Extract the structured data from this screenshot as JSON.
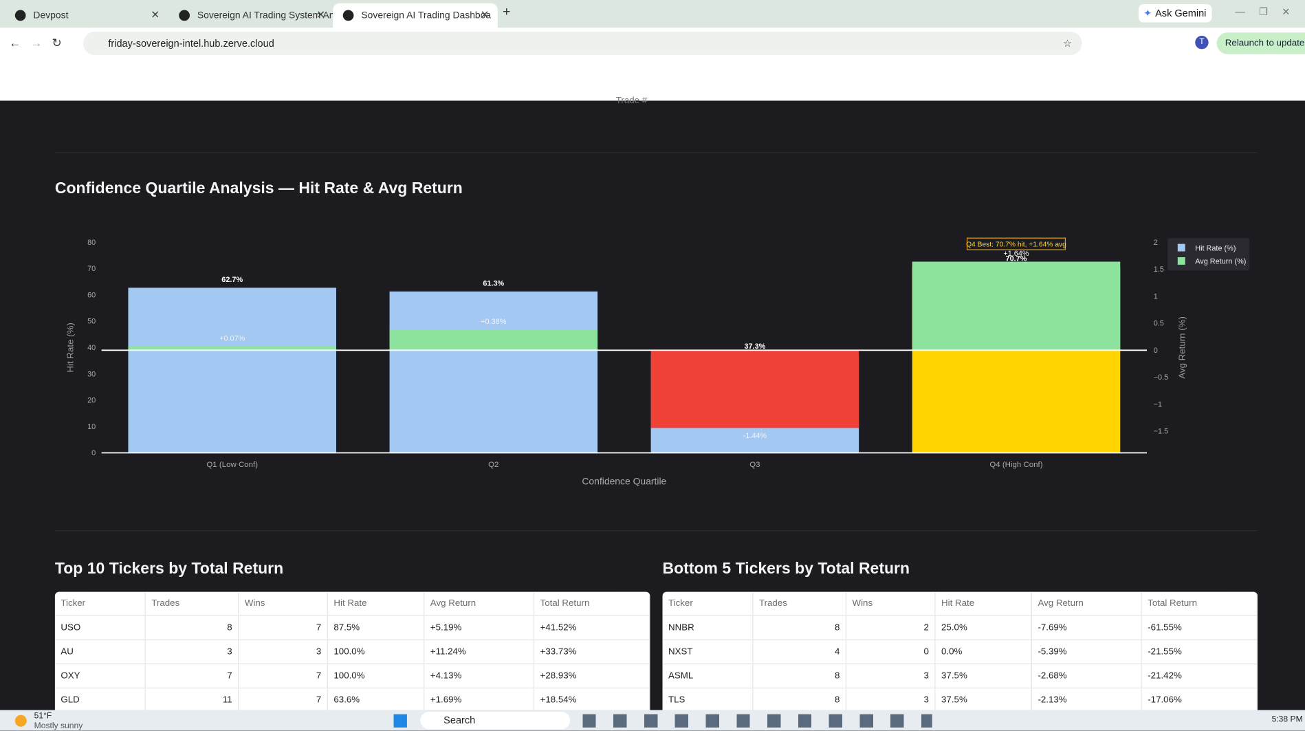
{
  "browser": {
    "tabs": [
      "Devpost",
      "Sovereign AI Trading System An",
      "Sovereign AI Trading Dashboa"
    ],
    "url": "friday-sovereign-intel.hub.zerve.cloud",
    "ask": "Ask Gemini",
    "relaunch": "Relaunch to update",
    "profile": "T"
  },
  "prev_axis_label": "Trade #",
  "chart_data": {
    "type": "bar",
    "title": "Confidence Quartile Analysis — Hit Rate & Avg Return",
    "categories": [
      "Q1 (Low Conf)",
      "Q2",
      "Q3",
      "Q4 (High Conf)"
    ],
    "series": [
      {
        "name": "Hit Rate (%)",
        "color": "#a3c8f2",
        "colors": [
          "#a3c8f2",
          "#a3c8f2",
          "#a3c8f2",
          "#ffd400"
        ],
        "values": [
          62.7,
          61.3,
          37.3,
          70.7
        ],
        "value_labels": [
          "62.7%",
          "61.3%",
          "37.3%",
          "70.7%"
        ]
      },
      {
        "name": "Avg Return (%)",
        "color": "#8de39e",
        "colors": [
          "#8de39e",
          "#8de39e",
          "#ef4136",
          "#8de39e"
        ],
        "axis": "y2",
        "values": [
          0.07,
          0.38,
          -1.44,
          1.64
        ],
        "value_labels": [
          "+0.07%",
          "+0.38%",
          "-1.44%",
          "+1.64%"
        ]
      }
    ],
    "xlabel": "Confidence Quartile",
    "ylabel": "Hit Rate (%)",
    "y2label": "Avg Return (%)",
    "ylim": [
      0,
      80
    ],
    "yticks": [
      0,
      10,
      20,
      30,
      40,
      50,
      60,
      70,
      80
    ],
    "y2lim": [
      -1.9,
      2
    ],
    "y2ticks": [
      {
        "value": -1.5,
        "label": "−1.5"
      },
      {
        "value": -1,
        "label": "−1"
      },
      {
        "value": -0.5,
        "label": "−0.5"
      },
      0,
      0.5,
      1,
      1.5,
      2
    ],
    "annotation": "Q4 Best: 70.7% hit, +1.64% avg",
    "legend": "right",
    "grid": false
  },
  "tables": [
    {
      "title": "Top 10 Tickers by Total Return",
      "columns": [
        "Ticker",
        "Trades",
        "Wins",
        "Hit Rate",
        "Avg Return",
        "Total Return"
      ],
      "rows": [
        [
          "USO",
          "8",
          "7",
          "87.5%",
          "+5.19%",
          "+41.52%"
        ],
        [
          "AU",
          "3",
          "3",
          "100.0%",
          "+11.24%",
          "+33.73%"
        ],
        [
          "OXY",
          "7",
          "7",
          "100.0%",
          "+4.13%",
          "+28.93%"
        ],
        [
          "GLD",
          "11",
          "7",
          "63.6%",
          "+1.69%",
          "+18.54%"
        ]
      ]
    },
    {
      "title": "Bottom 5 Tickers by Total Return",
      "columns": [
        "Ticker",
        "Trades",
        "Wins",
        "Hit Rate",
        "Avg Return",
        "Total Return"
      ],
      "rows": [
        [
          "NNBR",
          "8",
          "2",
          "25.0%",
          "-7.69%",
          "-61.55%"
        ],
        [
          "NXST",
          "4",
          "0",
          "0.0%",
          "-5.39%",
          "-21.55%"
        ],
        [
          "ASML",
          "8",
          "3",
          "37.5%",
          "-2.68%",
          "-21.42%"
        ],
        [
          "TLS",
          "8",
          "3",
          "37.5%",
          "-2.13%",
          "-17.06%"
        ]
      ]
    }
  ],
  "taskbar": {
    "weather": "51°F",
    "weather_note": "Mostly sunny",
    "search": "Search",
    "time": "5:38 PM"
  }
}
